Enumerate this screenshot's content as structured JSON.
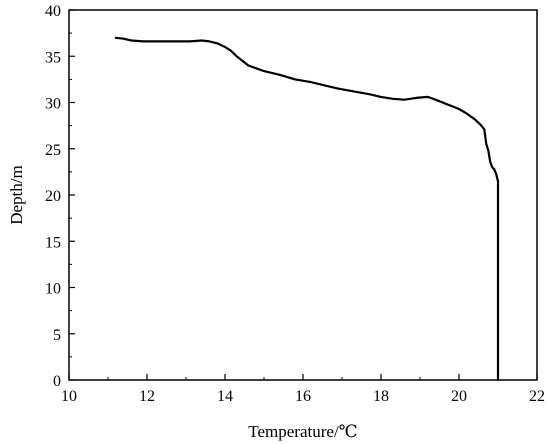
{
  "chart_data": {
    "type": "line",
    "title": "",
    "xlabel": "Temperature/℃",
    "ylabel": "Depth/m",
    "xlim": [
      10,
      22
    ],
    "ylim": [
      0,
      40
    ],
    "x_ticks": [
      10,
      12,
      14,
      16,
      18,
      20,
      22
    ],
    "y_ticks": [
      0,
      5,
      10,
      15,
      20,
      25,
      30,
      35,
      40
    ],
    "grid": false,
    "legend": "none",
    "line_color": "#000000",
    "series": [
      {
        "x": [
          11.2,
          11.4,
          11.6,
          11.9,
          12.3,
          12.7,
          13.1,
          13.4,
          13.6,
          13.8,
          14.0,
          14.15,
          14.3,
          14.45,
          14.6,
          14.8,
          15.0,
          15.4,
          15.8,
          16.2,
          16.5,
          16.9,
          17.3,
          17.7,
          18.0,
          18.3,
          18.6,
          18.9,
          19.2,
          19.4,
          19.7,
          20.0,
          20.2,
          20.4,
          20.55,
          20.65,
          20.7,
          20.75,
          20.8,
          20.85,
          20.9,
          20.95,
          20.98,
          21.0,
          21.0
        ],
        "y": [
          37.0,
          36.9,
          36.7,
          36.6,
          36.6,
          36.6,
          36.6,
          36.7,
          36.6,
          36.4,
          36.0,
          35.6,
          35.0,
          34.5,
          34.0,
          33.7,
          33.4,
          33.0,
          32.5,
          32.2,
          31.9,
          31.5,
          31.2,
          30.9,
          30.6,
          30.4,
          30.3,
          30.5,
          30.6,
          30.3,
          29.8,
          29.3,
          28.8,
          28.2,
          27.6,
          27.1,
          25.5,
          24.8,
          23.6,
          23.0,
          22.8,
          22.3,
          21.8,
          21.5,
          0.0
        ]
      }
    ]
  }
}
